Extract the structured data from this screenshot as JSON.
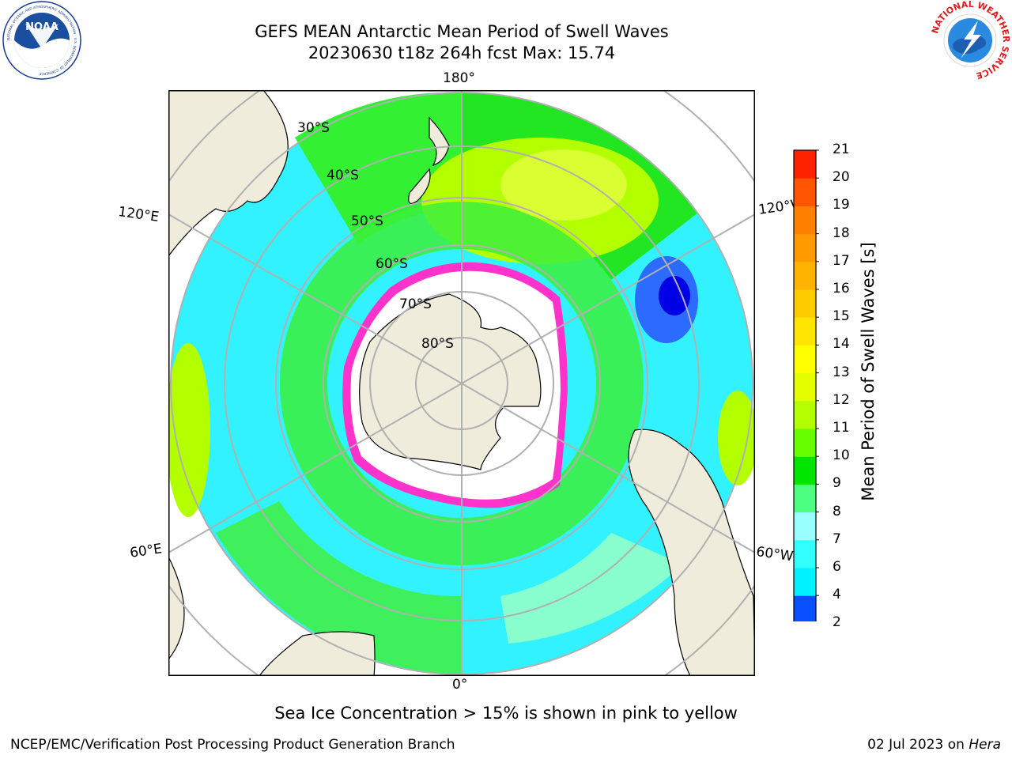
{
  "title": {
    "line1": "GEFS MEAN Antarctic Mean Period of Swell Waves",
    "line2": "20230630 t18z 264h fcst   Max: 15.74"
  },
  "logos": {
    "left": {
      "name": "noaa-logo",
      "text": "NOAA",
      "ring_text": "NATIONAL OCEANIC AND ATMOSPHERIC ADMINISTRATION · U.S. DEPARTMENT OF COMMERCE"
    },
    "right": {
      "name": "nws-logo",
      "ring_text": "NATIONAL WEATHER SERVICE"
    }
  },
  "map": {
    "projection": "south-polar-stereographic",
    "longitude_labels": {
      "top": "180°",
      "upper_left": "120°E",
      "upper_right": "120°W",
      "lower_left": "60°E",
      "lower_right": "60°W",
      "bottom": "0°"
    },
    "latitude_labels": [
      "30°S",
      "40°S",
      "50°S",
      "60°S",
      "70°S",
      "80°S"
    ],
    "colors": {
      "land": "#efecdc",
      "sea_ice_interior": "#ffffff",
      "sea_ice_edge": "#ff33cc",
      "grid": "#b0b0b0"
    }
  },
  "colorbar": {
    "label": "Mean Period of Swell Waves [s]",
    "ticks": [
      "2",
      "4",
      "6",
      "7",
      "8",
      "9",
      "10",
      "11",
      "12",
      "13",
      "14",
      "15",
      "16",
      "17",
      "18",
      "19",
      "20",
      "21"
    ],
    "colors": [
      "#0a4fff",
      "#00f0ff",
      "#33ffff",
      "#99ffff",
      "#4dff80",
      "#00e600",
      "#66ff00",
      "#b3ff00",
      "#e6ff00",
      "#ffff00",
      "#ffe600",
      "#ffcc00",
      "#ffb300",
      "#ff9900",
      "#ff7f00",
      "#ff5500",
      "#ff2200"
    ],
    "under_color": "#0000ff",
    "extend": "min"
  },
  "caption": "Sea Ice Concentration > 15% is shown in pink to yellow",
  "footer": {
    "left": "NCEP/EMC/Verification Post Processing Product Generation Branch",
    "right_prefix": "02 Jul 2023 on ",
    "right_italic": "Hera"
  }
}
